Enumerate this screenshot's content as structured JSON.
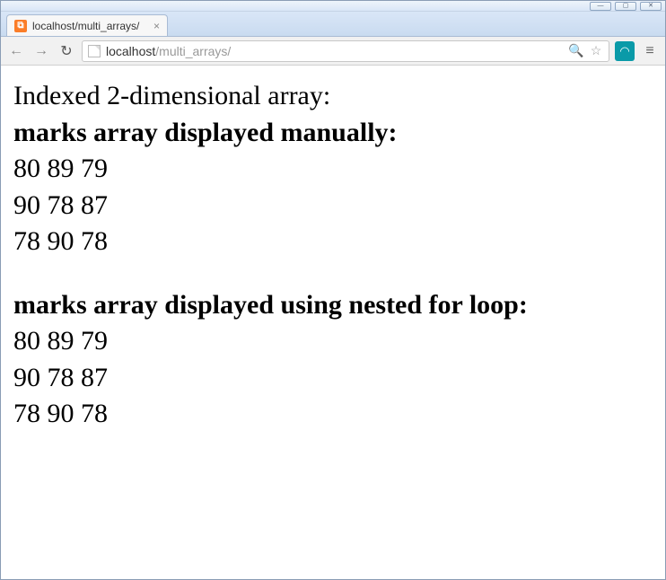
{
  "window": {
    "minimize_label": "—",
    "maximize_label": "▢",
    "close_label": "✕"
  },
  "tab": {
    "title": "localhost/multi_arrays/",
    "favicon_text": "⧉",
    "close_glyph": "×"
  },
  "toolbar": {
    "back_glyph": "←",
    "forward_glyph": "→",
    "reload_glyph": "↻",
    "page_icon": "",
    "url_host": "localhost",
    "url_path": "/multi_arrays/",
    "zoom_glyph": "🔍",
    "star_glyph": "☆",
    "ext_glyph": "◠",
    "menu_glyph": "≡"
  },
  "page": {
    "line1": "Indexed 2-dimensional array:",
    "heading1": "marks array displayed manually:",
    "rows1": [
      "80 89 79",
      "90 78 87",
      "78 90 78"
    ],
    "heading2": "marks array displayed using nested for loop:",
    "rows2": [
      "80 89 79",
      "90 78 87",
      "78 90 78"
    ]
  }
}
